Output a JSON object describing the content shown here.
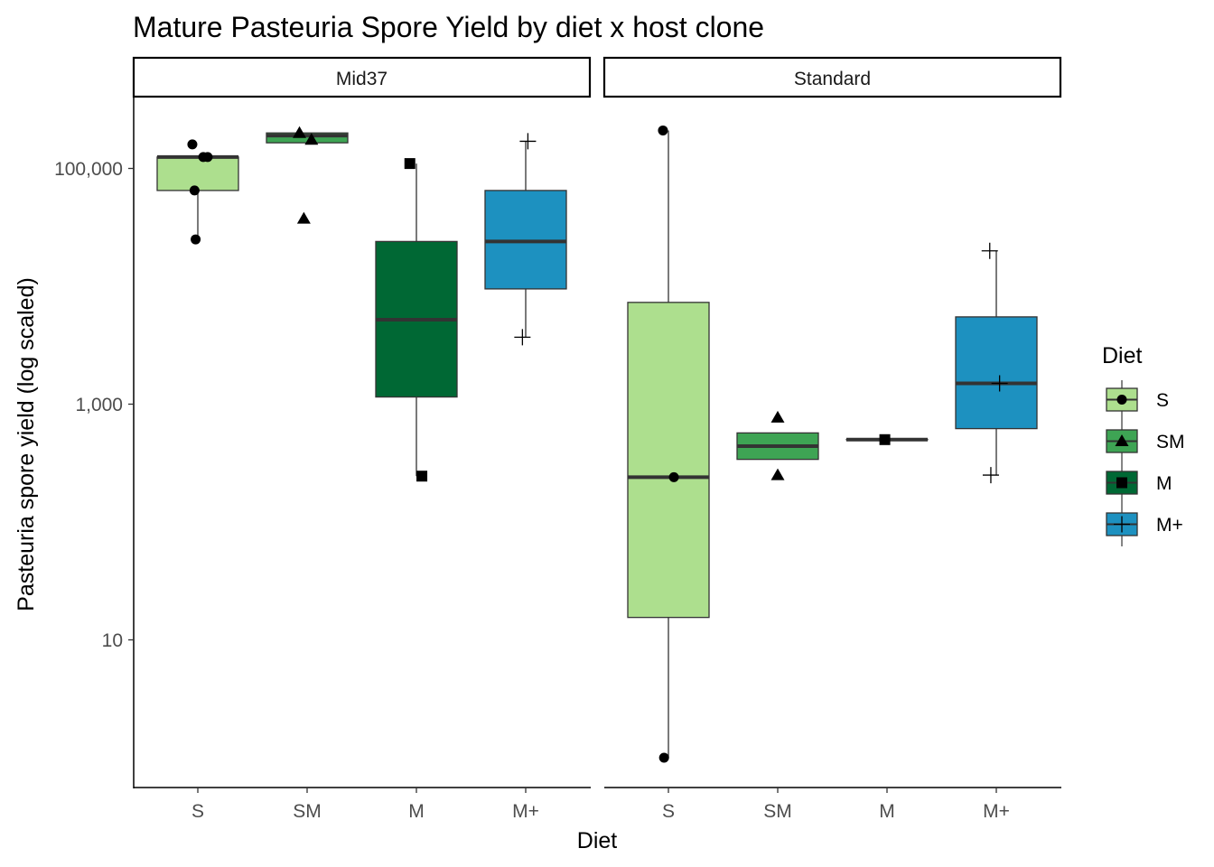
{
  "chart_data": {
    "type": "boxplot",
    "title": "Mature Pasteuria Spore Yield by diet x host clone",
    "xlabel": "Diet",
    "ylabel": "Pasteuria spore yield (log scaled)",
    "y_scale": "log10",
    "y_ticks": [
      {
        "value": 10,
        "label": "10"
      },
      {
        "value": 1000,
        "label": "1,000"
      },
      {
        "value": 100000,
        "label": "100,000"
      }
    ],
    "categories": [
      "S",
      "SM",
      "M",
      "M+"
    ],
    "legend": {
      "title": "Diet",
      "placement": "right",
      "items": [
        {
          "label": "S",
          "color": "#addf8e",
          "shape": "circle"
        },
        {
          "label": "SM",
          "color": "#3ea454",
          "shape": "triangle"
        },
        {
          "label": "M",
          "color": "#006834",
          "shape": "square"
        },
        {
          "label": "M+",
          "color": "#1d91c0",
          "shape": "plus"
        }
      ]
    },
    "panels": [
      {
        "label": "Mid37",
        "boxes": [
          {
            "diet": "S",
            "q1": 65000,
            "median": 125000,
            "q3": 125000,
            "whisker_low": 25000,
            "whisker_high": 125000,
            "points": [
              {
                "y": 160000,
                "dx": -0.05
              },
              {
                "y": 125000,
                "dx": 0.05
              },
              {
                "y": 125000,
                "dx": 0.09
              },
              {
                "y": 65000,
                "dx": -0.03
              },
              {
                "y": 25000,
                "dx": -0.02
              }
            ]
          },
          {
            "diet": "SM",
            "q1": 165000,
            "median": 190000,
            "q3": 200000,
            "whisker_low": 165000,
            "whisker_high": 200000,
            "points": [
              {
                "y": 200000,
                "dx": -0.07
              },
              {
                "y": 175000,
                "dx": 0.04
              },
              {
                "y": 37500,
                "dx": -0.03
              }
            ]
          },
          {
            "diet": "M",
            "q1": 1150,
            "median": 5200,
            "q3": 24000,
            "whisker_low": 245,
            "whisker_high": 110000,
            "points": [
              {
                "y": 110000,
                "dx": -0.06
              },
              {
                "y": 245,
                "dx": 0.05
              }
            ]
          },
          {
            "diet": "M+",
            "q1": 9500,
            "median": 24000,
            "q3": 65000,
            "whisker_low": 3700,
            "whisker_high": 170000,
            "points": [
              {
                "y": 170000,
                "dx": 0.02
              },
              {
                "y": 3700,
                "dx": -0.03
              }
            ]
          }
        ]
      },
      {
        "label": "Standard",
        "boxes": [
          {
            "diet": "S",
            "q1": 15.5,
            "median": 240,
            "q3": 7300,
            "whisker_low": 1,
            "whisker_high": 210000,
            "points": [
              {
                "y": 210000,
                "dx": -0.05
              },
              {
                "y": 240,
                "dx": 0.05
              },
              {
                "y": 1,
                "dx": -0.04
              }
            ]
          },
          {
            "diet": "SM",
            "q1": 340,
            "median": 440,
            "q3": 570,
            "whisker_low": 340,
            "whisker_high": 570,
            "points": [
              {
                "y": 770,
                "dx": 0.0
              },
              {
                "y": 250,
                "dx": 0.0
              }
            ]
          },
          {
            "diet": "M",
            "q1": 500,
            "median": 500,
            "q3": 500,
            "whisker_low": 500,
            "whisker_high": 500,
            "points": [
              {
                "y": 500,
                "dx": -0.02
              }
            ]
          },
          {
            "diet": "M+",
            "q1": 620,
            "median": 1500,
            "q3": 5500,
            "whisker_low": 250,
            "whisker_high": 20000,
            "points": [
              {
                "y": 20000,
                "dx": -0.06
              },
              {
                "y": 1500,
                "dx": 0.03
              },
              {
                "y": 250,
                "dx": -0.05
              }
            ]
          }
        ]
      }
    ]
  }
}
